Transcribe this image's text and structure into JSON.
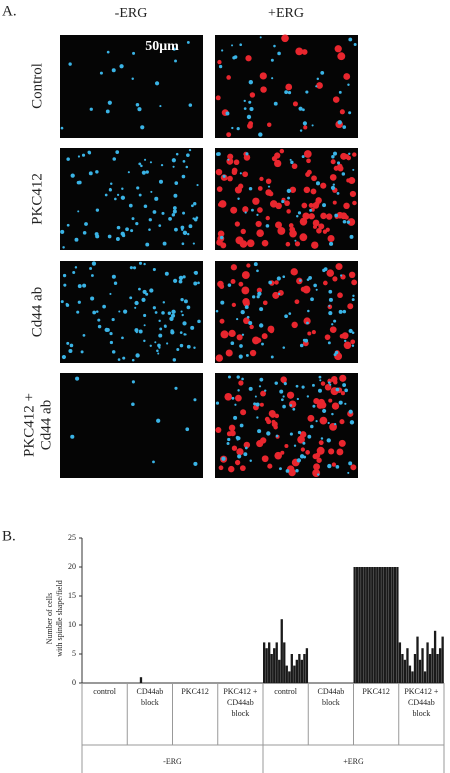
{
  "panel_a": {
    "label": "A.",
    "columns": [
      "-ERG",
      "+ERG"
    ],
    "rows": [
      [
        "Control"
      ],
      [
        "PKC412"
      ],
      [
        "Cd44 ab"
      ],
      [
        "PKC412 +",
        "Cd44 ab"
      ]
    ],
    "scale_bar": "50μm"
  },
  "chart_data": {
    "type": "bar",
    "label": "B.",
    "ylabel": [
      "Number of cells",
      "with spindle shape/field"
    ],
    "categories": [
      [
        "control"
      ],
      [
        "CD44ab",
        "block"
      ],
      [
        "PKC412"
      ],
      [
        "PKC412 +",
        "CD44ab",
        "block"
      ],
      [
        "control"
      ],
      [
        "CD44ab",
        "block"
      ],
      [
        "PKC412"
      ],
      [
        "PKC412 +",
        "CD44ab",
        "block"
      ]
    ],
    "groups": [
      "-ERG",
      "+ERG"
    ],
    "values": [
      [
        0,
        0,
        0,
        0,
        0,
        0,
        0,
        0,
        0,
        0,
        0,
        0,
        0,
        0,
        0,
        0,
        0,
        0
      ],
      [
        0,
        0,
        0,
        0,
        0,
        1,
        0,
        0,
        0,
        0,
        0,
        0,
        0,
        0,
        0,
        0,
        0,
        0
      ],
      [
        0,
        0,
        0,
        0,
        0,
        0,
        0,
        0,
        0,
        0,
        0,
        0,
        0,
        0,
        0,
        0,
        0,
        0
      ],
      [
        0,
        0,
        0,
        0,
        0,
        0,
        0,
        0,
        0,
        0,
        0,
        0,
        0,
        0,
        0,
        0,
        0,
        0
      ],
      [
        7,
        6,
        7,
        5,
        6,
        7,
        4,
        11,
        7,
        3,
        2,
        5,
        3,
        4,
        5,
        4,
        5,
        6
      ],
      [
        0,
        0,
        0,
        0,
        0,
        0,
        0,
        0,
        0,
        0,
        0,
        0,
        0,
        0,
        0,
        0,
        0,
        0
      ],
      [
        20,
        20,
        20,
        20,
        20,
        20,
        20,
        20,
        20,
        20,
        20,
        20,
        20,
        20,
        20,
        20,
        20,
        20
      ],
      [
        7,
        5,
        4,
        6,
        3,
        2,
        5,
        8,
        4,
        6,
        2,
        7,
        5,
        6,
        9,
        5,
        6,
        8
      ]
    ],
    "color": "#1a1a1a",
    "ylim": [
      0,
      25
    ],
    "yticks": [
      0,
      5,
      10,
      15,
      20,
      25
    ]
  }
}
